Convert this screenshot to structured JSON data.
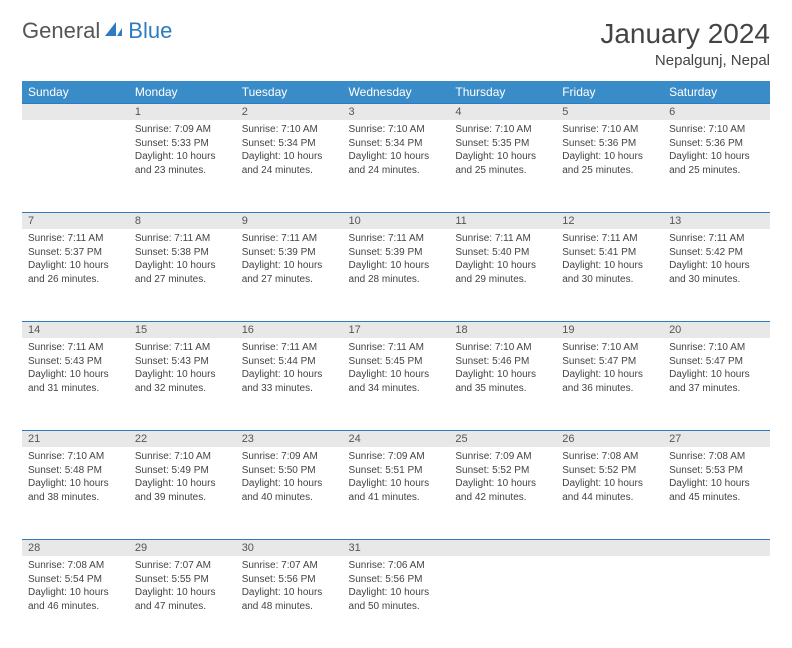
{
  "branding": {
    "logo_text_1": "General",
    "logo_text_2": "Blue",
    "logo_icon_color": "#2d7cc0"
  },
  "header": {
    "month_title": "January 2024",
    "location": "Nepalgunj, Nepal"
  },
  "calendar": {
    "day_headers": [
      "Sunday",
      "Monday",
      "Tuesday",
      "Wednesday",
      "Thursday",
      "Friday",
      "Saturday"
    ],
    "header_bg": "#3a8cc9",
    "header_text_color": "#ffffff",
    "daynum_bg": "#e8e8e8",
    "daynum_border_color": "#2d7cc0",
    "text_color": "#444444",
    "font_size_cell": 10,
    "weeks": [
      [
        {
          "n": "",
          "sunrise": "",
          "sunset": "",
          "daylight": ""
        },
        {
          "n": "1",
          "sunrise": "Sunrise: 7:09 AM",
          "sunset": "Sunset: 5:33 PM",
          "daylight": "Daylight: 10 hours and 23 minutes."
        },
        {
          "n": "2",
          "sunrise": "Sunrise: 7:10 AM",
          "sunset": "Sunset: 5:34 PM",
          "daylight": "Daylight: 10 hours and 24 minutes."
        },
        {
          "n": "3",
          "sunrise": "Sunrise: 7:10 AM",
          "sunset": "Sunset: 5:34 PM",
          "daylight": "Daylight: 10 hours and 24 minutes."
        },
        {
          "n": "4",
          "sunrise": "Sunrise: 7:10 AM",
          "sunset": "Sunset: 5:35 PM",
          "daylight": "Daylight: 10 hours and 25 minutes."
        },
        {
          "n": "5",
          "sunrise": "Sunrise: 7:10 AM",
          "sunset": "Sunset: 5:36 PM",
          "daylight": "Daylight: 10 hours and 25 minutes."
        },
        {
          "n": "6",
          "sunrise": "Sunrise: 7:10 AM",
          "sunset": "Sunset: 5:36 PM",
          "daylight": "Daylight: 10 hours and 25 minutes."
        }
      ],
      [
        {
          "n": "7",
          "sunrise": "Sunrise: 7:11 AM",
          "sunset": "Sunset: 5:37 PM",
          "daylight": "Daylight: 10 hours and 26 minutes."
        },
        {
          "n": "8",
          "sunrise": "Sunrise: 7:11 AM",
          "sunset": "Sunset: 5:38 PM",
          "daylight": "Daylight: 10 hours and 27 minutes."
        },
        {
          "n": "9",
          "sunrise": "Sunrise: 7:11 AM",
          "sunset": "Sunset: 5:39 PM",
          "daylight": "Daylight: 10 hours and 27 minutes."
        },
        {
          "n": "10",
          "sunrise": "Sunrise: 7:11 AM",
          "sunset": "Sunset: 5:39 PM",
          "daylight": "Daylight: 10 hours and 28 minutes."
        },
        {
          "n": "11",
          "sunrise": "Sunrise: 7:11 AM",
          "sunset": "Sunset: 5:40 PM",
          "daylight": "Daylight: 10 hours and 29 minutes."
        },
        {
          "n": "12",
          "sunrise": "Sunrise: 7:11 AM",
          "sunset": "Sunset: 5:41 PM",
          "daylight": "Daylight: 10 hours and 30 minutes."
        },
        {
          "n": "13",
          "sunrise": "Sunrise: 7:11 AM",
          "sunset": "Sunset: 5:42 PM",
          "daylight": "Daylight: 10 hours and 30 minutes."
        }
      ],
      [
        {
          "n": "14",
          "sunrise": "Sunrise: 7:11 AM",
          "sunset": "Sunset: 5:43 PM",
          "daylight": "Daylight: 10 hours and 31 minutes."
        },
        {
          "n": "15",
          "sunrise": "Sunrise: 7:11 AM",
          "sunset": "Sunset: 5:43 PM",
          "daylight": "Daylight: 10 hours and 32 minutes."
        },
        {
          "n": "16",
          "sunrise": "Sunrise: 7:11 AM",
          "sunset": "Sunset: 5:44 PM",
          "daylight": "Daylight: 10 hours and 33 minutes."
        },
        {
          "n": "17",
          "sunrise": "Sunrise: 7:11 AM",
          "sunset": "Sunset: 5:45 PM",
          "daylight": "Daylight: 10 hours and 34 minutes."
        },
        {
          "n": "18",
          "sunrise": "Sunrise: 7:10 AM",
          "sunset": "Sunset: 5:46 PM",
          "daylight": "Daylight: 10 hours and 35 minutes."
        },
        {
          "n": "19",
          "sunrise": "Sunrise: 7:10 AM",
          "sunset": "Sunset: 5:47 PM",
          "daylight": "Daylight: 10 hours and 36 minutes."
        },
        {
          "n": "20",
          "sunrise": "Sunrise: 7:10 AM",
          "sunset": "Sunset: 5:47 PM",
          "daylight": "Daylight: 10 hours and 37 minutes."
        }
      ],
      [
        {
          "n": "21",
          "sunrise": "Sunrise: 7:10 AM",
          "sunset": "Sunset: 5:48 PM",
          "daylight": "Daylight: 10 hours and 38 minutes."
        },
        {
          "n": "22",
          "sunrise": "Sunrise: 7:10 AM",
          "sunset": "Sunset: 5:49 PM",
          "daylight": "Daylight: 10 hours and 39 minutes."
        },
        {
          "n": "23",
          "sunrise": "Sunrise: 7:09 AM",
          "sunset": "Sunset: 5:50 PM",
          "daylight": "Daylight: 10 hours and 40 minutes."
        },
        {
          "n": "24",
          "sunrise": "Sunrise: 7:09 AM",
          "sunset": "Sunset: 5:51 PM",
          "daylight": "Daylight: 10 hours and 41 minutes."
        },
        {
          "n": "25",
          "sunrise": "Sunrise: 7:09 AM",
          "sunset": "Sunset: 5:52 PM",
          "daylight": "Daylight: 10 hours and 42 minutes."
        },
        {
          "n": "26",
          "sunrise": "Sunrise: 7:08 AM",
          "sunset": "Sunset: 5:52 PM",
          "daylight": "Daylight: 10 hours and 44 minutes."
        },
        {
          "n": "27",
          "sunrise": "Sunrise: 7:08 AM",
          "sunset": "Sunset: 5:53 PM",
          "daylight": "Daylight: 10 hours and 45 minutes."
        }
      ],
      [
        {
          "n": "28",
          "sunrise": "Sunrise: 7:08 AM",
          "sunset": "Sunset: 5:54 PM",
          "daylight": "Daylight: 10 hours and 46 minutes."
        },
        {
          "n": "29",
          "sunrise": "Sunrise: 7:07 AM",
          "sunset": "Sunset: 5:55 PM",
          "daylight": "Daylight: 10 hours and 47 minutes."
        },
        {
          "n": "30",
          "sunrise": "Sunrise: 7:07 AM",
          "sunset": "Sunset: 5:56 PM",
          "daylight": "Daylight: 10 hours and 48 minutes."
        },
        {
          "n": "31",
          "sunrise": "Sunrise: 7:06 AM",
          "sunset": "Sunset: 5:56 PM",
          "daylight": "Daylight: 10 hours and 50 minutes."
        },
        {
          "n": "",
          "sunrise": "",
          "sunset": "",
          "daylight": ""
        },
        {
          "n": "",
          "sunrise": "",
          "sunset": "",
          "daylight": ""
        },
        {
          "n": "",
          "sunrise": "",
          "sunset": "",
          "daylight": ""
        }
      ]
    ]
  }
}
